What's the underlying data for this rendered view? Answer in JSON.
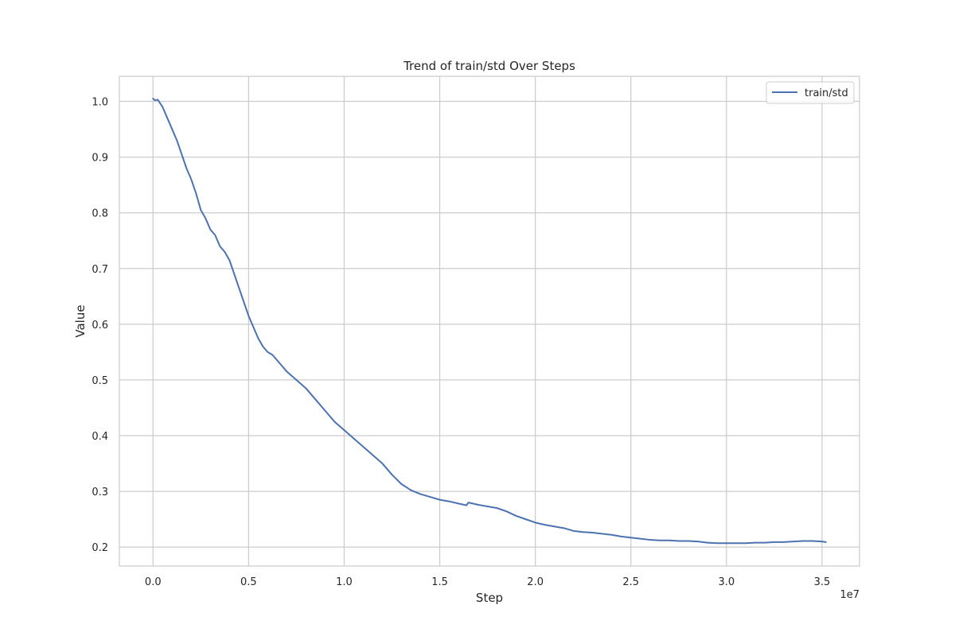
{
  "chart_data": {
    "type": "line",
    "title": "Trend of train/std Over Steps",
    "xlabel": "Step",
    "ylabel": "Value",
    "x_offset_text": "1e7",
    "xlim": [
      -1760000,
      36960000
    ],
    "ylim": [
      0.166,
      1.045
    ],
    "x_ticks": [
      0,
      5000000,
      10000000,
      15000000,
      20000000,
      25000000,
      30000000,
      35000000
    ],
    "x_tick_labels": [
      "0.0",
      "0.5",
      "1.0",
      "1.5",
      "2.0",
      "2.5",
      "3.0",
      "3.5"
    ],
    "y_ticks": [
      0.2,
      0.3,
      0.4,
      0.5,
      0.6,
      0.7,
      0.8,
      0.9,
      1.0
    ],
    "y_tick_labels": [
      "0.2",
      "0.3",
      "0.4",
      "0.5",
      "0.6",
      "0.7",
      "0.8",
      "0.9",
      "1.0"
    ],
    "grid": true,
    "legend_position": "top-right",
    "series": [
      {
        "name": "train/std",
        "color": "#4c72b0",
        "x": [
          0,
          100000,
          250000,
          500000,
          750000,
          1000000,
          1250000,
          1500000,
          1750000,
          2000000,
          2250000,
          2500000,
          2750000,
          3000000,
          3250000,
          3500000,
          3750000,
          4000000,
          4250000,
          4500000,
          4750000,
          5000000,
          5250000,
          5500000,
          5750000,
          6000000,
          6250000,
          6500000,
          6750000,
          7000000,
          7500000,
          8000000,
          8500000,
          9000000,
          9500000,
          10000000,
          10500000,
          11000000,
          11500000,
          12000000,
          12500000,
          13000000,
          13500000,
          14000000,
          14500000,
          15000000,
          15500000,
          16000000,
          16400000,
          16500000,
          17000000,
          17500000,
          18000000,
          18500000,
          19000000,
          19500000,
          20000000,
          20500000,
          21000000,
          21500000,
          22000000,
          22500000,
          23000000,
          23500000,
          24000000,
          24500000,
          25000000,
          25500000,
          26000000,
          26500000,
          27000000,
          27500000,
          28000000,
          28500000,
          29000000,
          29500000,
          30000000,
          30500000,
          31000000,
          31500000,
          32000000,
          32500000,
          33000000,
          33500000,
          34000000,
          34500000,
          35000000,
          35200000
        ],
        "y": [
          1.005,
          1.002,
          1.003,
          0.99,
          0.97,
          0.95,
          0.93,
          0.905,
          0.88,
          0.86,
          0.835,
          0.805,
          0.79,
          0.77,
          0.76,
          0.74,
          0.73,
          0.715,
          0.69,
          0.665,
          0.64,
          0.615,
          0.595,
          0.575,
          0.56,
          0.55,
          0.545,
          0.535,
          0.525,
          0.515,
          0.5,
          0.485,
          0.465,
          0.445,
          0.425,
          0.41,
          0.395,
          0.38,
          0.365,
          0.35,
          0.33,
          0.313,
          0.302,
          0.295,
          0.29,
          0.285,
          0.282,
          0.278,
          0.275,
          0.28,
          0.276,
          0.273,
          0.27,
          0.264,
          0.256,
          0.25,
          0.244,
          0.24,
          0.237,
          0.234,
          0.229,
          0.227,
          0.226,
          0.224,
          0.222,
          0.219,
          0.217,
          0.215,
          0.213,
          0.212,
          0.212,
          0.211,
          0.211,
          0.21,
          0.208,
          0.207,
          0.207,
          0.207,
          0.207,
          0.208,
          0.208,
          0.209,
          0.209,
          0.21,
          0.211,
          0.211,
          0.21,
          0.209
        ]
      }
    ]
  }
}
